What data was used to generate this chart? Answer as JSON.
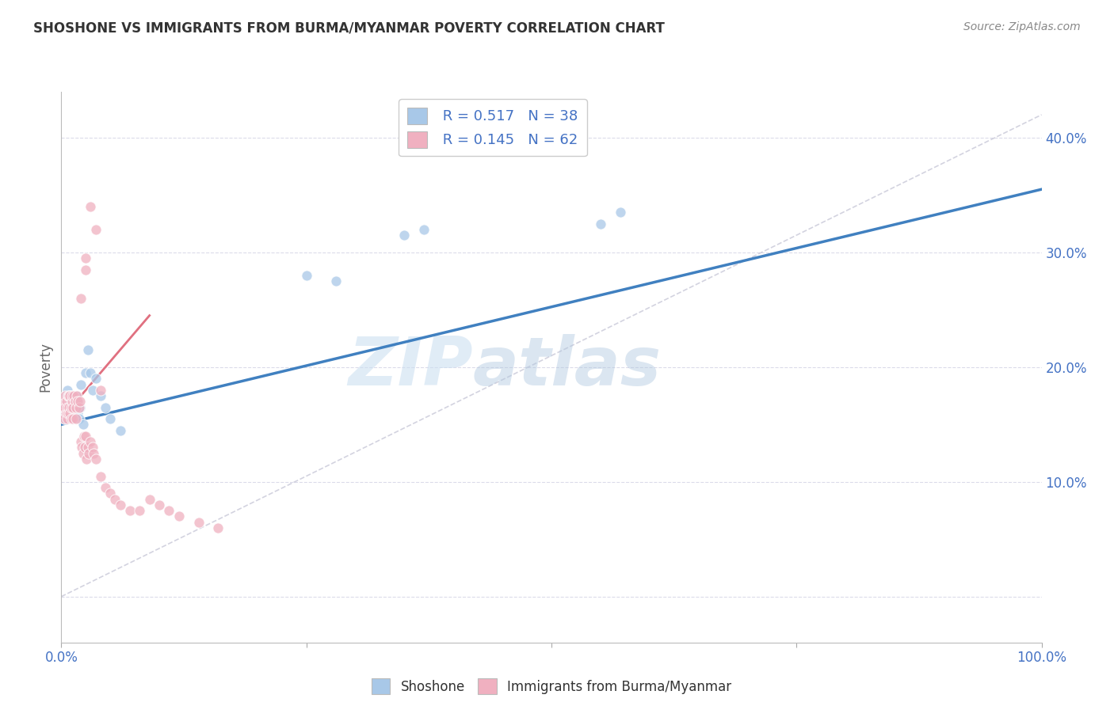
{
  "title": "SHOSHONE VS IMMIGRANTS FROM BURMA/MYANMAR POVERTY CORRELATION CHART",
  "source_text": "Source: ZipAtlas.com",
  "ylabel": "Poverty",
  "watermark_zip": "ZIP",
  "watermark_atlas": "atlas",
  "legend_r1": "R = 0.517",
  "legend_n1": "N = 38",
  "legend_r2": "R = 0.145",
  "legend_n2": "N = 62",
  "label1": "Shoshone",
  "label2": "Immigrants from Burma/Myanmar",
  "color_blue": "#a8c8e8",
  "color_pink": "#f0b0c0",
  "color_blue_line": "#4080c0",
  "color_pink_line": "#e07080",
  "color_ref_line": "#c8c8d8",
  "title_color": "#333333",
  "axis_color": "#4472c4",
  "legend_text_color": "#4472c4",
  "grid_color": "#d8d8e8",
  "background_color": "#ffffff",
  "xlim": [
    0,
    1
  ],
  "ylim": [
    -0.04,
    0.44
  ],
  "yticks": [
    0.0,
    0.1,
    0.2,
    0.3,
    0.4
  ],
  "ytick_labels": [
    "",
    "10.0%",
    "20.0%",
    "30.0%",
    "40.0%"
  ],
  "shoshone_x": [
    0.002,
    0.003,
    0.004,
    0.005,
    0.005,
    0.006,
    0.007,
    0.008,
    0.009,
    0.01,
    0.01,
    0.011,
    0.012,
    0.013,
    0.014,
    0.015,
    0.015,
    0.016,
    0.017,
    0.018,
    0.019,
    0.02,
    0.022,
    0.025,
    0.027,
    0.03,
    0.032,
    0.035,
    0.04,
    0.045,
    0.05,
    0.06,
    0.35,
    0.37,
    0.55,
    0.57,
    0.25,
    0.28
  ],
  "shoshone_y": [
    0.165,
    0.16,
    0.155,
    0.17,
    0.175,
    0.18,
    0.16,
    0.165,
    0.17,
    0.155,
    0.175,
    0.165,
    0.155,
    0.17,
    0.155,
    0.175,
    0.165,
    0.17,
    0.16,
    0.155,
    0.165,
    0.185,
    0.15,
    0.195,
    0.215,
    0.195,
    0.18,
    0.19,
    0.175,
    0.165,
    0.155,
    0.145,
    0.315,
    0.32,
    0.325,
    0.335,
    0.28,
    0.275
  ],
  "burma_x": [
    0.001,
    0.002,
    0.003,
    0.003,
    0.004,
    0.004,
    0.005,
    0.005,
    0.006,
    0.006,
    0.007,
    0.007,
    0.008,
    0.008,
    0.009,
    0.009,
    0.01,
    0.01,
    0.011,
    0.011,
    0.012,
    0.012,
    0.013,
    0.014,
    0.015,
    0.015,
    0.016,
    0.017,
    0.018,
    0.019,
    0.02,
    0.021,
    0.022,
    0.023,
    0.024,
    0.025,
    0.026,
    0.027,
    0.028,
    0.03,
    0.032,
    0.033,
    0.035,
    0.04,
    0.045,
    0.05,
    0.055,
    0.06,
    0.07,
    0.08,
    0.09,
    0.1,
    0.11,
    0.12,
    0.14,
    0.16,
    0.02,
    0.025,
    0.03,
    0.035,
    0.025,
    0.04
  ],
  "burma_y": [
    0.16,
    0.165,
    0.17,
    0.155,
    0.165,
    0.175,
    0.16,
    0.17,
    0.155,
    0.165,
    0.16,
    0.175,
    0.165,
    0.175,
    0.16,
    0.175,
    0.165,
    0.155,
    0.17,
    0.175,
    0.165,
    0.155,
    0.175,
    0.17,
    0.155,
    0.165,
    0.175,
    0.17,
    0.165,
    0.17,
    0.135,
    0.13,
    0.125,
    0.14,
    0.13,
    0.14,
    0.12,
    0.13,
    0.125,
    0.135,
    0.13,
    0.125,
    0.12,
    0.105,
    0.095,
    0.09,
    0.085,
    0.08,
    0.075,
    0.075,
    0.085,
    0.08,
    0.075,
    0.07,
    0.065,
    0.06,
    0.26,
    0.295,
    0.34,
    0.32,
    0.285,
    0.18
  ],
  "pink_line_x": [
    0.0,
    0.09
  ],
  "pink_line_y": [
    0.155,
    0.245
  ],
  "blue_line_x": [
    0.0,
    1.0
  ],
  "blue_line_y": [
    0.15,
    0.355
  ],
  "ref_line_x": [
    0.0,
    1.0
  ],
  "ref_line_y": [
    0.0,
    0.42
  ]
}
